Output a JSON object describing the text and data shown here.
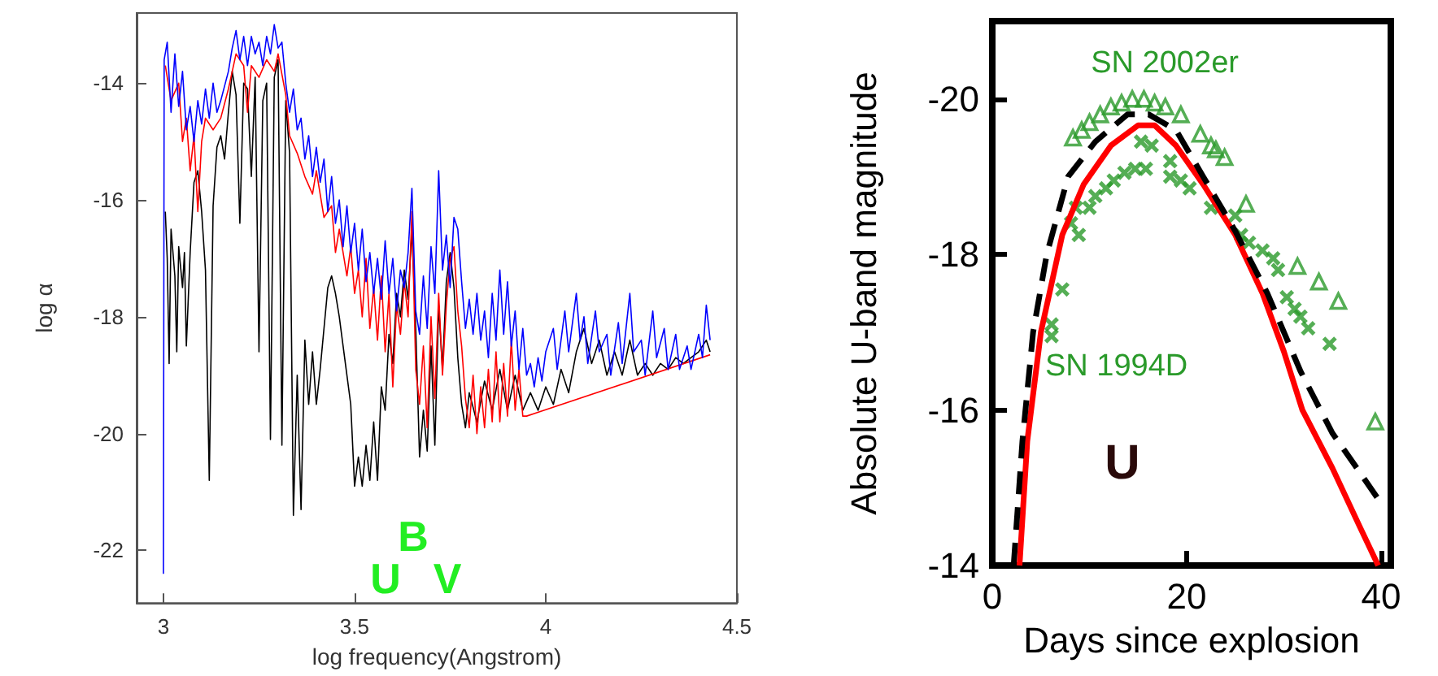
{
  "chart_data": [
    {
      "type": "line",
      "xlabel": "log frequency(Angstrom)",
      "ylabel": "log α",
      "xlim": [
        2.93,
        4.5
      ],
      "xticks": [
        3,
        3.5,
        4,
        4.5
      ],
      "ylim": [
        -22.9,
        -12.8
      ],
      "yticks": [
        -22,
        -20,
        -18,
        -16,
        -14
      ],
      "grid": false,
      "legend": false,
      "marker": "none",
      "line_style": "solid",
      "annotations": [
        "U",
        "B",
        "V"
      ],
      "series": [
        {
          "color": "#000000",
          "x": [
            3.005,
            3.01,
            3.015,
            3.02,
            3.03,
            3.035,
            3.04,
            3.05,
            3.055,
            3.06,
            3.07,
            3.08,
            3.09,
            3.1,
            3.11,
            3.12,
            3.13,
            3.14,
            3.15,
            3.16,
            3.17,
            3.18,
            3.19,
            3.2,
            3.21,
            3.22,
            3.23,
            3.24,
            3.25,
            3.26,
            3.27,
            3.28,
            3.29,
            3.3,
            3.31,
            3.32,
            3.33,
            3.34,
            3.35,
            3.36,
            3.37,
            3.38,
            3.39,
            3.4,
            3.41,
            3.42,
            3.43,
            3.44,
            3.45,
            3.46,
            3.47,
            3.48,
            3.49,
            3.5,
            3.51,
            3.52,
            3.53,
            3.54,
            3.55,
            3.56,
            3.57,
            3.58,
            3.59,
            3.6,
            3.61,
            3.62,
            3.63,
            3.64,
            3.65,
            3.66,
            3.67,
            3.68,
            3.69,
            3.7,
            3.71,
            3.72,
            3.73,
            3.74,
            3.75,
            3.76,
            3.77,
            3.78,
            3.79,
            3.8,
            3.82,
            3.84,
            3.86,
            3.88,
            3.9,
            3.92,
            3.94,
            3.96,
            3.98,
            4.0,
            4.02,
            4.04,
            4.06,
            4.08,
            4.1,
            4.12,
            4.14,
            4.16,
            4.18,
            4.2,
            4.22,
            4.24,
            4.26,
            4.28,
            4.3,
            4.32,
            4.34,
            4.36,
            4.38,
            4.4,
            4.42,
            4.43
          ],
          "values": [
            -16.2,
            -17.0,
            -18.8,
            -16.5,
            -17.3,
            -18.6,
            -16.8,
            -17.5,
            -16.9,
            -18.5,
            -16.9,
            -15.7,
            -15.5,
            -16.2,
            -17.2,
            -20.8,
            -16.1,
            -15.1,
            -14.9,
            -15.3,
            -14.5,
            -13.8,
            -14.2,
            -16.4,
            -14.0,
            -14.1,
            -15.6,
            -13.9,
            -18.6,
            -14.3,
            -14.0,
            -20.1,
            -13.9,
            -13.6,
            -20.2,
            -14.3,
            -15.2,
            -21.4,
            -19.0,
            -21.3,
            -18.4,
            -19.5,
            -18.6,
            -19.5,
            -18.9,
            -18.2,
            -17.5,
            -17.3,
            -17.6,
            -18.0,
            -18.5,
            -19.0,
            -19.5,
            -20.9,
            -20.4,
            -20.9,
            -20.2,
            -20.8,
            -19.8,
            -20.8,
            -19.2,
            -19.6,
            -18.3,
            -18.8,
            -17.6,
            -18.0,
            -17.2,
            -17.7,
            -16.5,
            -18.2,
            -20.4,
            -19.6,
            -20.3,
            -18.5,
            -20.2,
            -17.8,
            -18.9,
            -17.4,
            -16.9,
            -17.5,
            -18.7,
            -19.5,
            -19.9,
            -19.3,
            -19.8,
            -19.1,
            -19.6,
            -18.9,
            -19.6,
            -19.0,
            -19.6,
            -19.3,
            -19.6,
            -19.2,
            -19.5,
            -18.9,
            -19.3,
            -18.6,
            -18.2,
            -18.8,
            -18.4,
            -19.0,
            -18.6,
            -19.0,
            -18.4,
            -19.0,
            -18.8,
            -19.0,
            -18.8,
            -18.9,
            -18.7,
            -18.8,
            -18.7,
            -18.6,
            -18.4,
            -18.6
          ]
        },
        {
          "color": "#ff0000",
          "x": [
            3.005,
            3.02,
            3.04,
            3.05,
            3.06,
            3.07,
            3.08,
            3.09,
            3.1,
            3.11,
            3.13,
            3.15,
            3.17,
            3.19,
            3.21,
            3.22,
            3.23,
            3.25,
            3.27,
            3.29,
            3.3,
            3.32,
            3.33,
            3.35,
            3.37,
            3.39,
            3.4,
            3.42,
            3.44,
            3.45,
            3.46,
            3.48,
            3.49,
            3.5,
            3.51,
            3.52,
            3.53,
            3.54,
            3.55,
            3.56,
            3.57,
            3.58,
            3.59,
            3.6,
            3.61,
            3.62,
            3.63,
            3.64,
            3.65,
            3.66,
            3.67,
            3.68,
            3.69,
            3.7,
            3.71,
            3.72,
            3.73,
            3.74,
            3.75,
            3.76,
            3.77,
            3.78,
            3.79,
            3.8,
            3.81,
            3.82,
            3.83,
            3.84,
            3.85,
            3.86,
            3.87,
            3.88,
            3.89,
            3.9,
            3.91,
            3.92,
            3.93,
            3.94,
            3.95,
            4.43
          ],
          "values": [
            -13.7,
            -14.3,
            -14.0,
            -15.0,
            -14.6,
            -15.5,
            -14.9,
            -16.2,
            -15.0,
            -14.6,
            -14.8,
            -14.6,
            -14.1,
            -13.5,
            -13.7,
            -14.5,
            -13.7,
            -13.9,
            -13.6,
            -13.8,
            -13.5,
            -14.2,
            -14.9,
            -15.2,
            -15.6,
            -15.9,
            -15.5,
            -16.3,
            -16.1,
            -16.9,
            -16.5,
            -17.3,
            -16.8,
            -17.6,
            -17.2,
            -18.0,
            -17.0,
            -18.2,
            -17.5,
            -18.4,
            -17.3,
            -18.6,
            -17.6,
            -19.2,
            -17.8,
            -18.3,
            -17.4,
            -18.0,
            -16.2,
            -18.9,
            -19.5,
            -18.5,
            -19.9,
            -18.0,
            -19.4,
            -17.6,
            -19.0,
            -17.8,
            -17.0,
            -16.8,
            -17.9,
            -18.5,
            -19.4,
            -19.9,
            -19.0,
            -20.0,
            -19.2,
            -19.9,
            -18.9,
            -19.8,
            -18.6,
            -19.8,
            -18.8,
            -19.7,
            -18.4,
            -19.6,
            -18.9,
            -19.7,
            -19.7,
            -18.65
          ]
        },
        {
          "color": "#0000ff",
          "x": [
            3.0,
            3.002,
            3.01,
            3.02,
            3.03,
            3.04,
            3.05,
            3.06,
            3.07,
            3.08,
            3.09,
            3.1,
            3.11,
            3.12,
            3.13,
            3.14,
            3.15,
            3.17,
            3.18,
            3.19,
            3.2,
            3.21,
            3.22,
            3.23,
            3.24,
            3.25,
            3.26,
            3.27,
            3.28,
            3.29,
            3.3,
            3.31,
            3.32,
            3.33,
            3.34,
            3.35,
            3.36,
            3.37,
            3.38,
            3.39,
            3.4,
            3.41,
            3.42,
            3.43,
            3.44,
            3.45,
            3.46,
            3.47,
            3.48,
            3.49,
            3.5,
            3.51,
            3.52,
            3.53,
            3.54,
            3.55,
            3.56,
            3.57,
            3.58,
            3.59,
            3.6,
            3.61,
            3.62,
            3.63,
            3.64,
            3.65,
            3.66,
            3.67,
            3.68,
            3.69,
            3.7,
            3.71,
            3.72,
            3.73,
            3.74,
            3.75,
            3.76,
            3.77,
            3.78,
            3.79,
            3.8,
            3.81,
            3.82,
            3.83,
            3.84,
            3.85,
            3.86,
            3.87,
            3.88,
            3.89,
            3.9,
            3.91,
            3.92,
            3.93,
            3.94,
            3.95,
            3.96,
            3.97,
            3.98,
            3.99,
            4.0,
            4.02,
            4.03,
            4.05,
            4.06,
            4.08,
            4.09,
            4.1,
            4.11,
            4.13,
            4.14,
            4.16,
            4.17,
            4.19,
            4.2,
            4.22,
            4.23,
            4.25,
            4.26,
            4.28,
            4.29,
            4.31,
            4.32,
            4.34,
            4.35,
            4.37,
            4.38,
            4.4,
            4.41,
            4.42,
            4.43
          ],
          "values": [
            -22.4,
            -13.6,
            -13.3,
            -14.5,
            -13.5,
            -14.4,
            -13.8,
            -14.8,
            -14.4,
            -15.0,
            -14.3,
            -14.7,
            -14.1,
            -14.6,
            -14.0,
            -14.5,
            -14.3,
            -13.8,
            -13.4,
            -13.1,
            -13.6,
            -13.2,
            -13.7,
            -13.2,
            -13.5,
            -13.3,
            -13.7,
            -13.2,
            -13.5,
            -13.0,
            -13.4,
            -13.3,
            -14.0,
            -14.5,
            -14.1,
            -14.8,
            -14.6,
            -15.3,
            -14.9,
            -15.6,
            -15.1,
            -15.7,
            -15.3,
            -16.2,
            -15.6,
            -16.4,
            -16.0,
            -16.8,
            -16.1,
            -16.9,
            -16.4,
            -17.2,
            -16.5,
            -17.4,
            -16.9,
            -17.6,
            -17.0,
            -17.7,
            -16.7,
            -17.6,
            -17.0,
            -17.9,
            -17.2,
            -17.5,
            -16.9,
            -15.8,
            -17.9,
            -18.3,
            -17.3,
            -18.2,
            -16.8,
            -17.6,
            -15.5,
            -17.2,
            -16.6,
            -17.5,
            -16.3,
            -16.5,
            -17.4,
            -18.2,
            -17.7,
            -18.3,
            -17.6,
            -18.4,
            -17.9,
            -18.7,
            -17.6,
            -18.4,
            -17.2,
            -18.3,
            -17.4,
            -18.5,
            -17.9,
            -18.9,
            -18.2,
            -19.0,
            -18.8,
            -19.2,
            -18.7,
            -19.1,
            -18.6,
            -18.2,
            -18.9,
            -17.9,
            -18.6,
            -17.6,
            -18.4,
            -18.0,
            -18.8,
            -17.9,
            -18.6,
            -18.3,
            -19.0,
            -18.1,
            -18.8,
            -17.6,
            -18.6,
            -18.4,
            -19.0,
            -17.9,
            -18.7,
            -18.2,
            -18.9,
            -18.3,
            -18.9,
            -18.5,
            -18.9,
            -18.3,
            -18.7,
            -17.8,
            -18.4
          ]
        }
      ]
    },
    {
      "type": "line",
      "xlabel": "Days since explosion",
      "ylabel": "Absolute U-band magnitude",
      "xlim": [
        0,
        41
      ],
      "xticks": [
        0,
        20,
        40
      ],
      "ylim": [
        -14,
        -21
      ],
      "yticks": [
        -20,
        -18,
        -16,
        -14
      ],
      "grid": false,
      "legend": false,
      "annotations": [
        "U"
      ],
      "series": [
        {
          "color": "#ff0000",
          "marker": "none",
          "line_style": "solid",
          "x": [
            2.8,
            3.6,
            5.0,
            7.2,
            9.4,
            12.2,
            15,
            16.7,
            18.9,
            21.7,
            25,
            27.8,
            30,
            31.9,
            35,
            37.8,
            39.7
          ],
          "values": [
            -14.0,
            -15.6,
            -17.0,
            -18.25,
            -18.9,
            -19.4,
            -19.66,
            -19.66,
            -19.4,
            -18.9,
            -18.25,
            -17.5,
            -16.75,
            -16.0,
            -15.25,
            -14.5,
            -14.0
          ]
        },
        {
          "color": "#000000",
          "marker": "none",
          "line_style": "dashed",
          "x": [
            2.2,
            3.1,
            4.2,
            5.6,
            7.8,
            10.6,
            13.9,
            16.1,
            18.9,
            21.7,
            25,
            28.3,
            31.7,
            35,
            37.8,
            40
          ],
          "values": [
            -14.0,
            -15.6,
            -17.0,
            -18.0,
            -19.0,
            -19.45,
            -19.8,
            -19.8,
            -19.6,
            -19.0,
            -18.3,
            -17.5,
            -16.5,
            -15.7,
            -15.2,
            -14.8
          ]
        },
        {
          "type": "scatter",
          "name": "SN 2002er",
          "color": "#2a9a2a",
          "marker": "triangle",
          "x": [
            8.3,
            9.2,
            10,
            11.1,
            12.2,
            13.3,
            14.4,
            15.6,
            16.7,
            17.8,
            19.4,
            21.4,
            22.5,
            23,
            23.9,
            26.1,
            31.4,
            33.6,
            35.6,
            39.4
          ],
          "values": [
            -19.5,
            -19.6,
            -19.7,
            -19.8,
            -19.9,
            -19.95,
            -20.0,
            -20.0,
            -19.95,
            -19.9,
            -19.8,
            -19.55,
            -19.4,
            -19.35,
            -19.25,
            -18.65,
            -17.85,
            -17.65,
            -17.4,
            -15.85
          ]
        },
        {
          "type": "scatter",
          "name": "SN 1994D",
          "color": "#2a9a2a",
          "marker": "cross",
          "x": [
            6.1,
            6.1,
            7.2,
            8.1,
            8.9,
            8.6,
            10,
            10.6,
            11.7,
            12.5,
            13.6,
            14.7,
            15.8,
            15.3,
            16.4,
            18.3,
            18.3,
            19.4,
            20.3,
            22.5,
            25,
            25.6,
            26.4,
            27.8,
            28.9,
            29.4,
            30.3,
            31.1,
            31.7,
            32.5,
            34.7
          ],
          "values": [
            -17.1,
            -16.95,
            -17.55,
            -18.4,
            -18.25,
            -18.6,
            -18.6,
            -18.75,
            -18.85,
            -18.95,
            -19.05,
            -19.1,
            -19.1,
            -19.45,
            -19.4,
            -19.2,
            -19.0,
            -18.95,
            -18.85,
            -18.6,
            -18.5,
            -18.25,
            -18.15,
            -18.05,
            -17.95,
            -17.8,
            -17.45,
            -17.3,
            -17.2,
            -17.05,
            -16.85
          ]
        }
      ]
    }
  ]
}
